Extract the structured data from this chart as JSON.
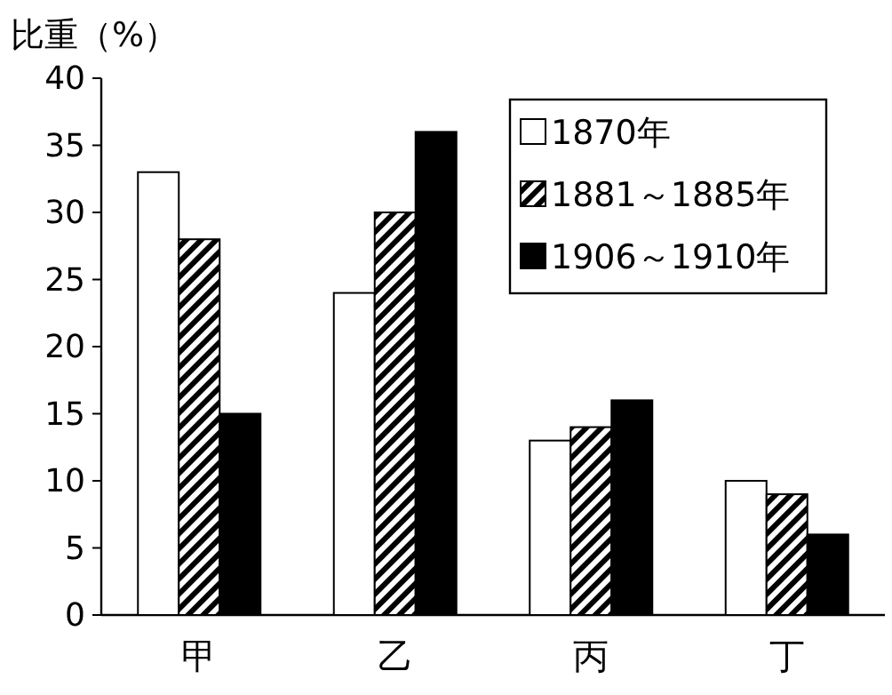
{
  "chart_data": {
    "type": "bar",
    "ylabel": "比重（%）",
    "categories": [
      "甲",
      "乙",
      "丙",
      "丁"
    ],
    "series": [
      {
        "name": "1870年",
        "color": "#ffffff",
        "values": [
          33,
          24,
          13,
          10
        ]
      },
      {
        "name": "1881～1885年",
        "color": "#000000",
        "values": [
          28,
          30,
          14,
          9
        ]
      },
      {
        "name": "1906～1910年",
        "color": "#000000",
        "values": [
          15,
          36,
          16,
          6
        ]
      }
    ],
    "ylim": [
      0,
      40
    ],
    "yticks": [
      0,
      5,
      10,
      15,
      20,
      25,
      30,
      35,
      40
    ],
    "legend": "top right",
    "grid": false
  }
}
